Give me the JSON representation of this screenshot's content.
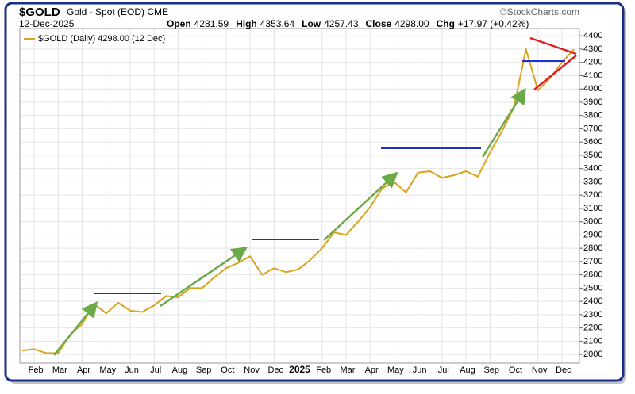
{
  "chart_data": {
    "type": "line",
    "symbol": "$GOLD",
    "title": "Gold - Spot (EOD) CME",
    "source": "©StockCharts.com",
    "date": "12-Dec-2025",
    "stats": [
      {
        "label": "Open",
        "value": "4281.59"
      },
      {
        "label": "High",
        "value": "4353.64"
      },
      {
        "label": "Low",
        "value": "4257.43"
      },
      {
        "label": "Close",
        "value": "4298.00"
      },
      {
        "label": "Chg",
        "value": "+17.97 (+0.42%)"
      }
    ],
    "categories": [
      null,
      "Feb",
      null,
      "Mar",
      null,
      "Apr",
      null,
      "May",
      null,
      "Jun",
      null,
      "Jul",
      null,
      "Aug",
      null,
      "Sep",
      null,
      "Oct",
      null,
      "Nov",
      null,
      "Dec",
      null,
      "2025",
      null,
      "Feb",
      null,
      "Mar",
      null,
      "Apr",
      null,
      "May",
      null,
      "Jun",
      null,
      "Jul",
      null,
      "Aug",
      null,
      "Sep",
      null,
      "Oct",
      null,
      "Nov",
      null,
      "Dec",
      null
    ],
    "series": [
      {
        "name": "$GOLD (Daily) 4298.00 (12 Dec)",
        "color": "#d9a320",
        "values": [
          2030,
          2040,
          2010,
          2010,
          2150,
          2230,
          2380,
          2310,
          2390,
          2330,
          2320,
          2370,
          2440,
          2430,
          2500,
          2500,
          2580,
          2650,
          2690,
          2740,
          2600,
          2650,
          2620,
          2640,
          2710,
          2800,
          2920,
          2900,
          3000,
          3110,
          3250,
          3300,
          3220,
          3370,
          3380,
          3330,
          3350,
          3380,
          3340,
          3520,
          3680,
          3860,
          4300,
          3990,
          4080,
          4200,
          4298
        ]
      }
    ],
    "ylim": [
      1935,
      4455
    ],
    "yticks": [
      2000,
      2100,
      2200,
      2300,
      2400,
      2500,
      2600,
      2700,
      2800,
      2900,
      3000,
      3100,
      3200,
      3300,
      3400,
      3500,
      3600,
      3700,
      3800,
      3900,
      4000,
      4100,
      4200,
      4300,
      4400
    ],
    "grid": true
  }
}
